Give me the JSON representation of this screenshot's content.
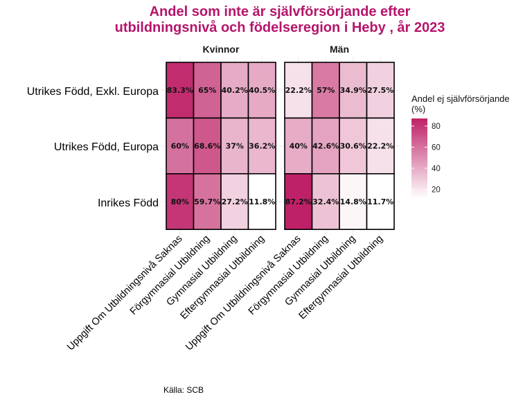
{
  "chart_data": {
    "type": "heatmap",
    "title_lines": [
      "Andel som inte är självförsörjande efter",
      "utbildningsnivå och födelseregion i Heby , år 2023"
    ],
    "caption": "Källa: SCB",
    "facets": [
      "Kvinnor",
      "Män"
    ],
    "x_categories": [
      "Uppgift Om Utbildningsnivå Saknas",
      "Förgymnasial Utbildning",
      "Gymnasial Utbildning",
      "Eftergymnasial Utbildning"
    ],
    "y_categories": [
      "Utrikes Född, Exkl. Europa",
      "Utrikes Född, Europa",
      "Inrikes Född"
    ],
    "values": {
      "Kvinnor": [
        [
          83.3,
          65,
          40.2,
          40.5
        ],
        [
          60,
          68.6,
          37,
          36.2
        ],
        [
          80,
          59.7,
          27.2,
          11.8
        ]
      ],
      "Män": [
        [
          22.2,
          57,
          34.9,
          27.5
        ],
        [
          40,
          42.6,
          30.6,
          22.2
        ],
        [
          87.2,
          32.4,
          14.8,
          11.7
        ]
      ]
    },
    "labels": {
      "Kvinnor": [
        [
          "83.3%",
          "65%",
          "40.2%",
          "40.5%"
        ],
        [
          "60%",
          "68.6%",
          "37%",
          "36.2%"
        ],
        [
          "80%",
          "59.7%",
          "27.2%",
          "11.8%"
        ]
      ],
      "Män": [
        [
          "22.2%",
          "57%",
          "34.9%",
          "27.5%"
        ],
        [
          "40%",
          "42.6%",
          "30.6%",
          "22.2%"
        ],
        [
          "87.2%",
          "32.4%",
          "14.8%",
          "11.7%"
        ]
      ]
    },
    "legend": {
      "title_lines": [
        "Andel ej självförsörjande",
        "(%)"
      ],
      "ticks": [
        80,
        60,
        40,
        20
      ],
      "range": [
        11.7,
        87.2
      ],
      "placement": "right"
    },
    "colors": {
      "low": "#ffffff",
      "high": "#be2167",
      "title": "#b5156b"
    }
  }
}
